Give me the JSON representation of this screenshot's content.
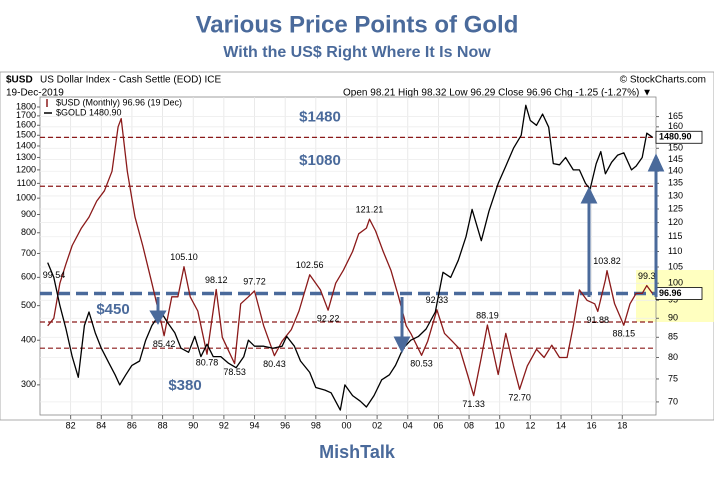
{
  "chart_data": {
    "type": "line",
    "title": "Various Price Points of Gold",
    "subtitle": "With the US$ Right Where It Is Now",
    "footer": "MishTalk",
    "header": {
      "symbol": "$USD",
      "description": "US Dollar Index - Cash Settle (EOD) ICE",
      "source": "© StockCharts.com",
      "date": "19-Dec-2019",
      "quote": "Open 98.21  High 98.32  Low 96.29  Close 96.96  Chg -1.25 (-1.27%) ▼"
    },
    "log_scale": true,
    "grid": true,
    "legend": "top-left",
    "xlim": [
      1980,
      2020.2
    ],
    "xticks": [
      {
        "value": 1982,
        "label": "82"
      },
      {
        "value": 1984,
        "label": "84"
      },
      {
        "value": 1986,
        "label": "86"
      },
      {
        "value": 1988,
        "label": "88"
      },
      {
        "value": 1990,
        "label": "90"
      },
      {
        "value": 1992,
        "label": "92"
      },
      {
        "value": 1994,
        "label": "94"
      },
      {
        "value": 1996,
        "label": "96"
      },
      {
        "value": 1998,
        "label": "98"
      },
      {
        "value": 2000,
        "label": "00"
      },
      {
        "value": 2002,
        "label": "02"
      },
      {
        "value": 2004,
        "label": "04"
      },
      {
        "value": 2006,
        "label": "06"
      },
      {
        "value": 2008,
        "label": "08"
      },
      {
        "value": 2010,
        "label": "10"
      },
      {
        "value": 2012,
        "label": "12"
      },
      {
        "value": 2014,
        "label": "14"
      },
      {
        "value": 2016,
        "label": "16"
      },
      {
        "value": 2018,
        "label": "18"
      }
    ],
    "ylim": [
      247,
      1920
    ],
    "yticks": [
      300,
      400,
      500,
      600,
      700,
      800,
      900,
      1000,
      1100,
      1200,
      1300,
      1400,
      1500,
      1600,
      1700,
      1800
    ],
    "y2lim": [
      67.3,
      175
    ],
    "y2ticks": [
      70,
      75,
      80,
      85,
      90,
      95,
      100,
      105,
      110,
      115,
      120,
      125,
      130,
      135,
      140,
      145,
      150,
      155,
      160,
      165
    ],
    "series": [
      {
        "name": "$USD (Monthly) 96.96 (19 Dec)",
        "color": "#8b1a1a",
        "axis": "y2",
        "x": [
          1980.5,
          1980.9,
          1981.3,
          1981.7,
          1982.1,
          1982.7,
          1983.2,
          1983.7,
          1984.2,
          1984.7,
          1985.1,
          1985.3,
          1985.7,
          1986.2,
          1986.7,
          1987.3,
          1987.9,
          1988.1,
          1988.6,
          1989.0,
          1989.4,
          1989.8,
          1990.3,
          1990.9,
          1991.5,
          1991.9,
          1992.7,
          1993.1,
          1993.6,
          1994.0,
          1994.6,
          1995.3,
          1995.8,
          1996.4,
          1996.9,
          1997.6,
          1998.3,
          1998.8,
          1999.3,
          1999.8,
          2000.4,
          2000.8,
          2001.3,
          2001.5,
          2001.9,
          2002.4,
          2002.9,
          2003.4,
          2003.9,
          2004.2,
          2004.9,
          2005.3,
          2005.9,
          2006.4,
          2006.9,
          2007.4,
          2007.9,
          2008.3,
          2008.8,
          2009.2,
          2009.9,
          2010.4,
          2010.9,
          2011.3,
          2011.8,
          2012.4,
          2012.9,
          2013.4,
          2013.9,
          2014.4,
          2014.8,
          2015.2,
          2015.7,
          2016.2,
          2016.4,
          2016.9,
          2017.0,
          2017.5,
          2018.1,
          2018.5,
          2018.9,
          2019.3,
          2019.6,
          2019.97
        ],
        "values": [
          88,
          90,
          100,
          106,
          112,
          118,
          122,
          128,
          132,
          140,
          160,
          164,
          140,
          122,
          112,
          100,
          89,
          85.42,
          96,
          96,
          105.1,
          96,
          92,
          80.78,
          98.12,
          85,
          78.53,
          94,
          96,
          97.72,
          88,
          80.43,
          84,
          87,
          92,
          102.56,
          98,
          92.22,
          100,
          104,
          110,
          116,
          118,
          121.21,
          117,
          110,
          104,
          96,
          88,
          86,
          80.53,
          84,
          92.33,
          86,
          84,
          82,
          76,
          71.33,
          80,
          88.19,
          76,
          86,
          78,
          72.7,
          78,
          82,
          80,
          83,
          80,
          80,
          88,
          98,
          95,
          94,
          91.88,
          101,
          103.82,
          94,
          88.15,
          94,
          97,
          97,
          99.3,
          96.96
        ],
        "end_label": {
          "value": 96.96,
          "label": "96.96"
        }
      },
      {
        "name": "$GOLD 1480.90",
        "color": "#000000",
        "axis": "y",
        "x": [
          1980.5,
          1980.9,
          1981.3,
          1981.7,
          1982.1,
          1982.5,
          1982.9,
          1983.2,
          1983.6,
          1984.0,
          1984.5,
          1984.9,
          1985.2,
          1985.6,
          1986.0,
          1986.5,
          1986.9,
          1987.3,
          1987.9,
          1988.3,
          1988.8,
          1989.2,
          1989.7,
          1990.1,
          1990.5,
          1990.9,
          1991.3,
          1991.8,
          1992.3,
          1992.8,
          1993.3,
          1993.6,
          1994.0,
          1994.6,
          1995.2,
          1995.8,
          1996.1,
          1996.6,
          1997.0,
          1997.6,
          1998.0,
          1998.6,
          1999.0,
          1999.6,
          1999.9,
          2000.4,
          2000.9,
          2001.3,
          2001.8,
          2002.3,
          2002.8,
          2003.2,
          2003.7,
          2004.2,
          2004.7,
          2005.2,
          2005.8,
          2006.3,
          2006.8,
          2007.3,
          2007.8,
          2008.2,
          2008.8,
          2009.3,
          2009.9,
          2010.4,
          2010.9,
          2011.4,
          2011.7,
          2012.0,
          2012.4,
          2012.8,
          2013.2,
          2013.5,
          2013.9,
          2014.3,
          2014.8,
          2015.2,
          2015.6,
          2015.9,
          2016.3,
          2016.6,
          2016.9,
          2017.3,
          2017.7,
          2018.1,
          2018.6,
          2018.9,
          2019.3,
          2019.6,
          2019.97
        ],
        "values": [
          660,
          600,
          500,
          430,
          360,
          315,
          440,
          480,
          420,
          380,
          345,
          320,
          300,
          320,
          340,
          350,
          400,
          440,
          480,
          450,
          420,
          380,
          370,
          410,
          360,
          390,
          360,
          360,
          345,
          335,
          360,
          400,
          385,
          385,
          380,
          385,
          410,
          385,
          350,
          325,
          295,
          290,
          285,
          255,
          300,
          280,
          270,
          260,
          280,
          310,
          320,
          340,
          380,
          400,
          410,
          430,
          480,
          620,
          600,
          670,
          780,
          930,
          760,
          920,
          1100,
          1230,
          1380,
          1500,
          1820,
          1650,
          1600,
          1720,
          1580,
          1250,
          1240,
          1300,
          1200,
          1200,
          1100,
          1060,
          1250,
          1350,
          1170,
          1260,
          1320,
          1340,
          1200,
          1230,
          1300,
          1520,
          1480.9
        ],
        "end_label": {
          "value": 1480.9,
          "label": "1480.90"
        }
      }
    ],
    "point_labels": [
      {
        "x": 1980.0,
        "value": 99.54,
        "label": "99.54",
        "pos": "above"
      },
      {
        "x": 1988.1,
        "value": 85.42,
        "label": "85.42",
        "pos": "below"
      },
      {
        "x": 1989.4,
        "value": 105.1,
        "label": "105.10",
        "pos": "above"
      },
      {
        "x": 1990.9,
        "value": 80.78,
        "label": "80.78",
        "pos": "below"
      },
      {
        "x": 1991.5,
        "value": 98.12,
        "label": "98.12",
        "pos": "above"
      },
      {
        "x": 1992.7,
        "value": 78.53,
        "label": "78.53",
        "pos": "below"
      },
      {
        "x": 1994.0,
        "value": 97.72,
        "label": "97.72",
        "pos": "above"
      },
      {
        "x": 1995.3,
        "value": 80.43,
        "label": "80.43",
        "pos": "below"
      },
      {
        "x": 1997.6,
        "value": 102.56,
        "label": "102.56",
        "pos": "above"
      },
      {
        "x": 1998.8,
        "value": 92.22,
        "label": "92.22",
        "pos": "below"
      },
      {
        "x": 2001.5,
        "value": 121.21,
        "label": "121.21",
        "pos": "above"
      },
      {
        "x": 2004.9,
        "value": 80.53,
        "label": "80.53",
        "pos": "below"
      },
      {
        "x": 2005.9,
        "value": 92.33,
        "label": "92.33",
        "pos": "above"
      },
      {
        "x": 2009.2,
        "value": 88.19,
        "label": "88.19",
        "pos": "above"
      },
      {
        "x": 2008.3,
        "value": 71.33,
        "label": "71.33",
        "pos": "below"
      },
      {
        "x": 2011.3,
        "value": 72.7,
        "label": "72.70",
        "pos": "below"
      },
      {
        "x": 2016.4,
        "value": 91.88,
        "label": "91.88",
        "pos": "below"
      },
      {
        "x": 2017.0,
        "value": 103.82,
        "label": "103.82",
        "pos": "above"
      },
      {
        "x": 2018.1,
        "value": 88.15,
        "label": "88.15",
        "pos": "below"
      },
      {
        "x": 2019.6,
        "value": 99.3,
        "label": "99.3",
        "pos": "above"
      }
    ],
    "levels": [
      {
        "value": 1480,
        "label": "$1480",
        "axis": "y",
        "color": "#8b1a1a"
      },
      {
        "value": 1080,
        "label": "$1080",
        "axis": "y",
        "color": "#8b1a1a"
      },
      {
        "value": 450,
        "label": "$450",
        "axis": "y",
        "color": "#8b1a1a"
      },
      {
        "value": 380,
        "label": "$380",
        "axis": "y",
        "color": "#8b1a1a"
      },
      {
        "value": 96.96,
        "axis": "y2",
        "color": "#4a6a9b"
      }
    ]
  }
}
